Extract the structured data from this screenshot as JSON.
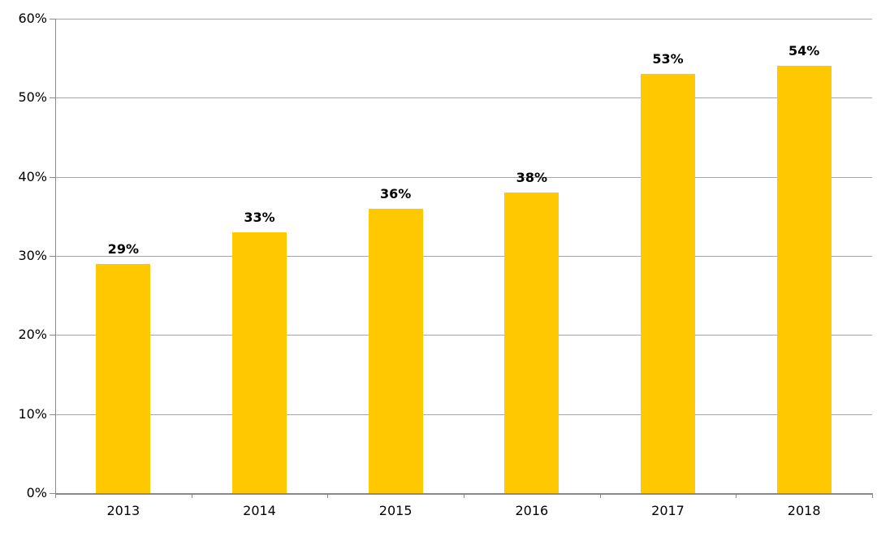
{
  "chart_data": {
    "type": "bar",
    "categories": [
      "2013",
      "2014",
      "2015",
      "2016",
      "2017",
      "2018"
    ],
    "values": [
      29,
      33,
      36,
      38,
      53,
      54
    ],
    "data_labels": [
      "29%",
      "33%",
      "36%",
      "38%",
      "53%",
      "54%"
    ],
    "title": "",
    "xlabel": "",
    "ylabel": "",
    "ylim": [
      0,
      60
    ],
    "ytick_step": 10,
    "ytick_labels": [
      "0%",
      "10%",
      "20%",
      "30%",
      "40%",
      "50%",
      "60%"
    ],
    "grid": true,
    "legend_position": "none",
    "colors": {
      "bar_fill": "#FFC800",
      "gridline": "#A6A6A6",
      "axis": "#898989",
      "tick_text": "#000000",
      "data_label_text": "#000000",
      "background": "#FFFFFF"
    }
  }
}
